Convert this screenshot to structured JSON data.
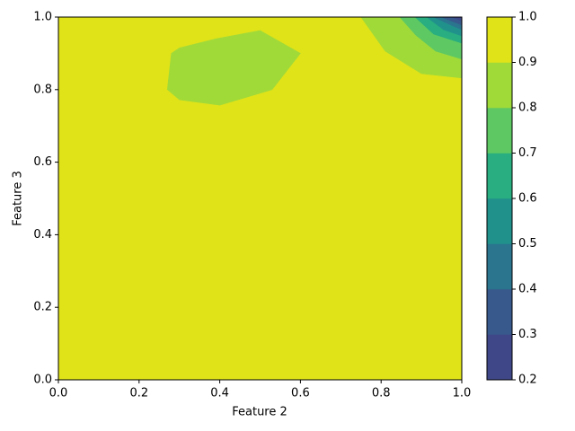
{
  "chart_data": {
    "type": "contour",
    "xlabel": "Feature 2",
    "ylabel": "Feature 3",
    "xlim": [
      0,
      1
    ],
    "ylim": [
      0,
      1
    ],
    "xticks": [
      {
        "value": 0,
        "label": "0.0"
      },
      0.2,
      0.4,
      0.6,
      0.8,
      {
        "value": 1,
        "label": "1.0"
      }
    ],
    "yticks": [
      {
        "value": 0,
        "label": "0.0"
      },
      0.2,
      0.4,
      0.6,
      0.8,
      {
        "value": 1,
        "label": "1.0"
      }
    ],
    "levels": [
      {
        "range": [
          0.2,
          0.3
        ],
        "color": "#3f4788",
        "polygons": [
          [
            [
              0.975,
              1
            ],
            [
              1,
              0.99
            ],
            [
              1,
              1
            ]
          ]
        ]
      },
      {
        "range": [
          0.3,
          0.4
        ],
        "color": "#38598c",
        "polygons": [
          [
            [
              0.949,
              1
            ],
            [
              1,
              0.978
            ],
            [
              1,
              1
            ]
          ]
        ]
      },
      {
        "range": [
          0.4,
          0.5
        ],
        "color": "#2b758e",
        "polygons": [
          [
            [
              0.93,
              1
            ],
            [
              0.973,
              0.978
            ],
            [
              1,
              0.965
            ],
            [
              1,
              1
            ]
          ]
        ]
      },
      {
        "range": [
          0.5,
          0.6
        ],
        "color": "#21918c",
        "polygons": [
          [
            [
              0.913,
              1
            ],
            [
              0.955,
              0.965
            ],
            [
              1,
              0.948
            ],
            [
              1,
              1
            ]
          ]
        ]
      },
      {
        "range": [
          0.6,
          0.7
        ],
        "color": "#28ae80",
        "polygons": [
          [
            [
              0.884,
              1
            ],
            [
              0.93,
              0.953
            ],
            [
              1,
              0.928
            ],
            [
              1,
              1
            ]
          ]
        ]
      },
      {
        "range": [
          0.7,
          0.8
        ],
        "color": "#5ec962",
        "polygons": [
          [
            [
              0.846,
              1
            ],
            [
              0.886,
              0.95
            ],
            [
              0.935,
              0.906
            ],
            [
              1,
              0.884
            ],
            [
              1,
              1
            ]
          ]
        ]
      },
      {
        "range": [
          0.8,
          0.9
        ],
        "color": "#a0da39",
        "polygons": [
          [
            [
              0.75,
              1
            ],
            [
              0.81,
              0.906
            ],
            [
              0.9,
              0.844
            ],
            [
              1,
              0.832
            ],
            [
              1,
              1
            ]
          ],
          [
            [
              0.27,
              0.8
            ],
            [
              0.28,
              0.9
            ],
            [
              0.3,
              0.915
            ],
            [
              0.39,
              0.94
            ],
            [
              0.5,
              0.963
            ],
            [
              0.6,
              0.9
            ],
            [
              0.53,
              0.8
            ],
            [
              0.5,
              0.79
            ],
            [
              0.4,
              0.757
            ],
            [
              0.3,
              0.772
            ]
          ]
        ]
      },
      {
        "range": [
          0.9,
          1.0
        ],
        "color": "#dfe318",
        "polygons": [
          [
            [
              0,
              0
            ],
            [
              1,
              0
            ],
            [
              1,
              1
            ],
            [
              0,
              1
            ]
          ]
        ]
      }
    ],
    "colorbar": {
      "lim": [
        0.2,
        1.0
      ],
      "ticks": [
        0.2,
        0.3,
        0.4,
        0.5,
        0.6,
        0.7,
        0.8,
        0.9,
        {
          "value": 1.0,
          "label": "1.0"
        }
      ]
    }
  }
}
